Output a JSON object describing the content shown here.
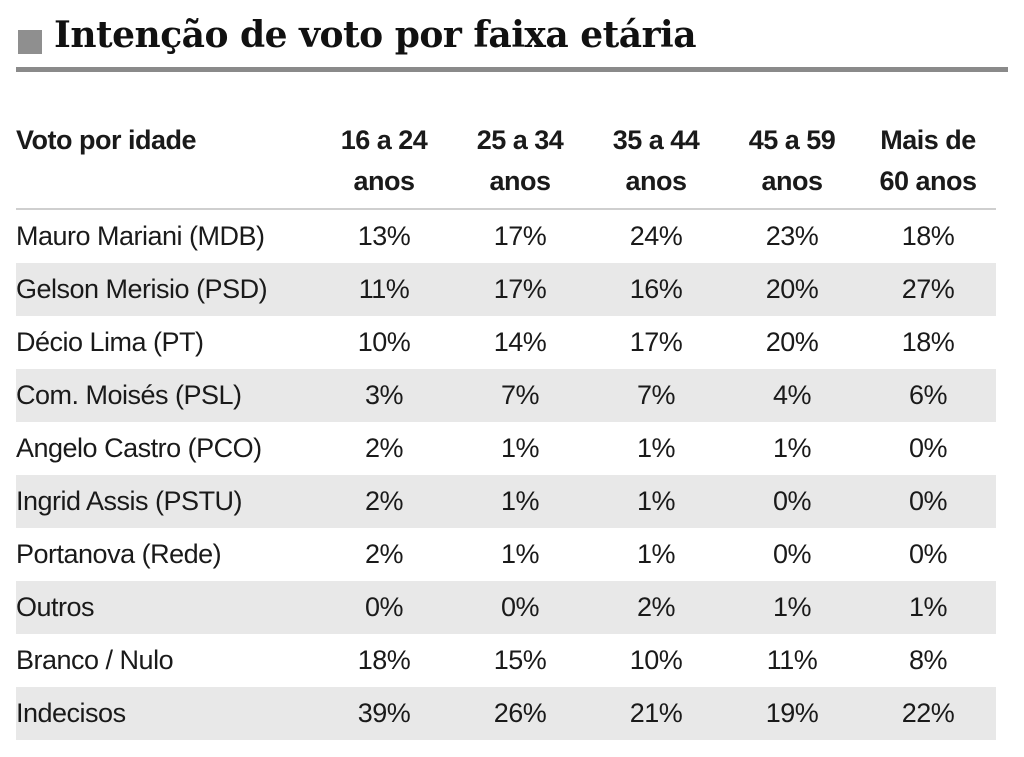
{
  "title": "Intenção de voto por faixa etária",
  "chart_data": {
    "type": "table",
    "title": "Intenção de voto por faixa etária",
    "row_header": "Voto por idade",
    "columns": [
      "16 a 24 anos",
      "25 a 34 anos",
      "35 a 44 anos",
      "45 a 59 anos",
      "Mais de 60 anos"
    ],
    "rows": [
      {
        "label": "Mauro Mariani (MDB)",
        "values": [
          "13%",
          "17%",
          "24%",
          "23%",
          "18%"
        ]
      },
      {
        "label": "Gelson Merisio (PSD)",
        "values": [
          "11%",
          "17%",
          "16%",
          "20%",
          "27%"
        ]
      },
      {
        "label": "Décio Lima (PT)",
        "values": [
          "10%",
          "14%",
          "17%",
          "20%",
          "18%"
        ]
      },
      {
        "label": "Com. Moisés (PSL)",
        "values": [
          "3%",
          "7%",
          "7%",
          "4%",
          "6%"
        ]
      },
      {
        "label": "Angelo Castro (PCO)",
        "values": [
          "2%",
          "1%",
          "1%",
          "1%",
          "0%"
        ]
      },
      {
        "label": "Ingrid Assis (PSTU)",
        "values": [
          "2%",
          "1%",
          "1%",
          "0%",
          "0%"
        ]
      },
      {
        "label": "Portanova (Rede)",
        "values": [
          "2%",
          "1%",
          "1%",
          "0%",
          "0%"
        ]
      },
      {
        "label": "Outros",
        "values": [
          "0%",
          "0%",
          "2%",
          "1%",
          "1%"
        ]
      },
      {
        "label": "Branco / Nulo",
        "values": [
          "18%",
          "15%",
          "10%",
          "11%",
          "8%"
        ]
      },
      {
        "label": "Indecisos",
        "values": [
          "39%",
          "26%",
          "21%",
          "19%",
          "22%"
        ]
      }
    ]
  },
  "colors": {
    "rule": "#8a8a8a",
    "title_square": "#8f8f8f",
    "row_shade": "#e8e8e8",
    "text": "#1a1a1a"
  }
}
